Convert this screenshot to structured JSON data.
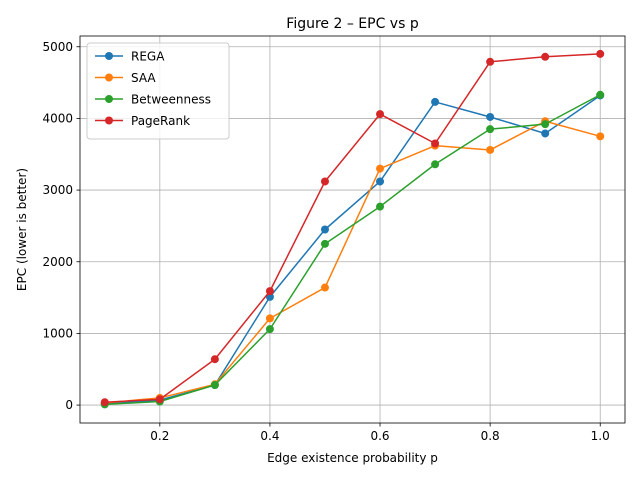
{
  "chart_data": {
    "type": "line",
    "title": "Figure 2 – EPC vs p",
    "xlabel": "Edge existence probability p",
    "ylabel": "EPC (lower is better)",
    "xlim": [
      0.055,
      1.045
    ],
    "ylim": [
      -250,
      5150
    ],
    "xticks": [
      0.2,
      0.4,
      0.6,
      0.8,
      1.0
    ],
    "xtick_labels": [
      "0.2",
      "0.4",
      "0.6",
      "0.8",
      "1.0"
    ],
    "yticks": [
      0,
      1000,
      2000,
      3000,
      4000,
      5000
    ],
    "ytick_labels": [
      "0",
      "1000",
      "2000",
      "3000",
      "4000",
      "5000"
    ],
    "grid": true,
    "legend_position": "upper-left",
    "x": [
      0.1,
      0.2,
      0.3,
      0.4,
      0.5,
      0.6,
      0.7,
      0.8,
      0.9,
      1.0
    ],
    "series": [
      {
        "name": "REGA",
        "color": "#1f77b4",
        "values": [
          20,
          70,
          280,
          1510,
          2450,
          3120,
          4230,
          4020,
          3790,
          4320
        ]
      },
      {
        "name": "SAA",
        "color": "#ff7f0e",
        "values": [
          30,
          100,
          290,
          1210,
          1640,
          3300,
          3620,
          3560,
          3960,
          3750
        ]
      },
      {
        "name": "Betweenness",
        "color": "#2ca02c",
        "values": [
          10,
          50,
          280,
          1060,
          2250,
          2770,
          3360,
          3850,
          3920,
          4330
        ]
      },
      {
        "name": "PageRank",
        "color": "#d62728",
        "values": [
          40,
          80,
          640,
          1590,
          3120,
          4060,
          3650,
          4790,
          4860,
          4900
        ]
      }
    ]
  }
}
